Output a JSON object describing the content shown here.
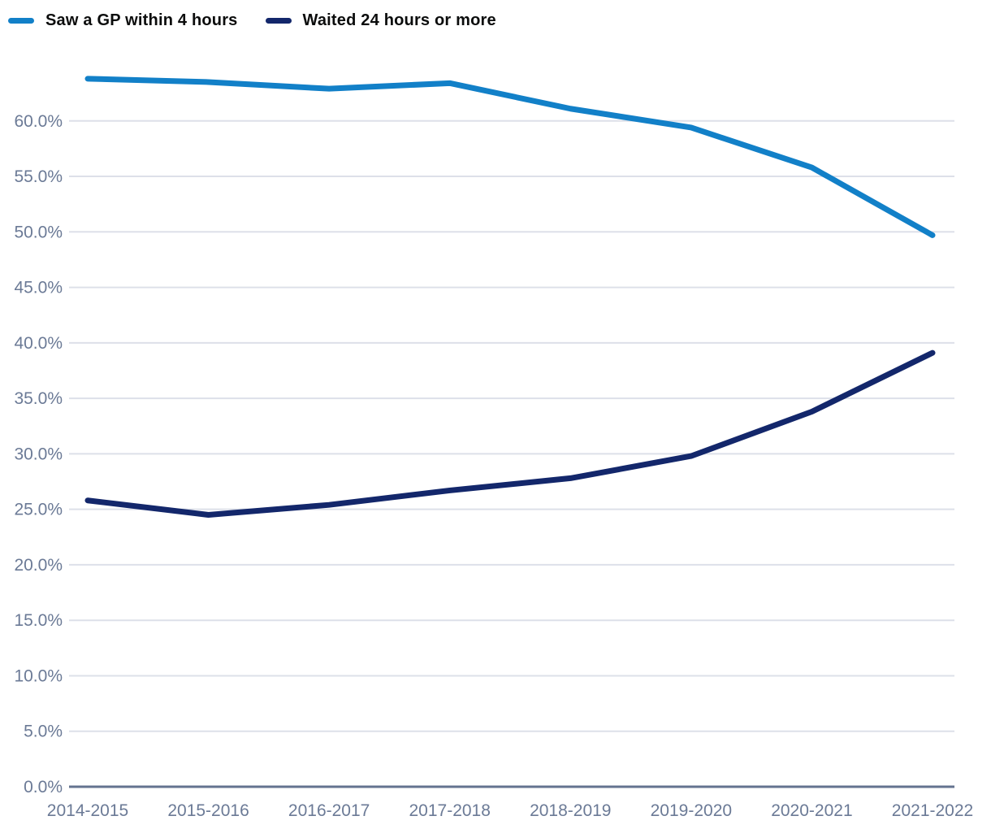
{
  "colors": {
    "background": "#ffffff",
    "grid": "#dde0e9",
    "axis_line": "#64738f",
    "tick_text": "#6b7a96",
    "legend_text": "#0b0c0c",
    "series_blue": "#1280c8",
    "series_navy": "#13276b"
  },
  "chart_data": {
    "type": "line",
    "title": "",
    "xlabel": "",
    "ylabel": "",
    "grid": true,
    "legend_position": "top-left",
    "ylim": [
      0,
      65
    ],
    "ytick_step": 5,
    "ytick_labels": [
      "0.0%",
      "5.0%",
      "10.0%",
      "15.0%",
      "20.0%",
      "25.0%",
      "30.0%",
      "35.0%",
      "40.0%",
      "45.0%",
      "50.0%",
      "55.0%",
      "60.0%"
    ],
    "categories": [
      "2014-2015",
      "2015-2016",
      "2016-2017",
      "2017-2018",
      "2018-2019",
      "2019-2020",
      "2020-2021",
      "2021-2022"
    ],
    "series": [
      {
        "name": "Saw a GP within 4 hours",
        "color": "#1280c8",
        "values": [
          63.8,
          63.5,
          62.9,
          63.4,
          61.1,
          59.4,
          55.8,
          49.7
        ]
      },
      {
        "name": "Waited 24 hours or more",
        "color": "#13276b",
        "values": [
          25.8,
          24.5,
          25.4,
          26.7,
          27.8,
          29.8,
          33.8,
          39.1
        ]
      }
    ]
  }
}
